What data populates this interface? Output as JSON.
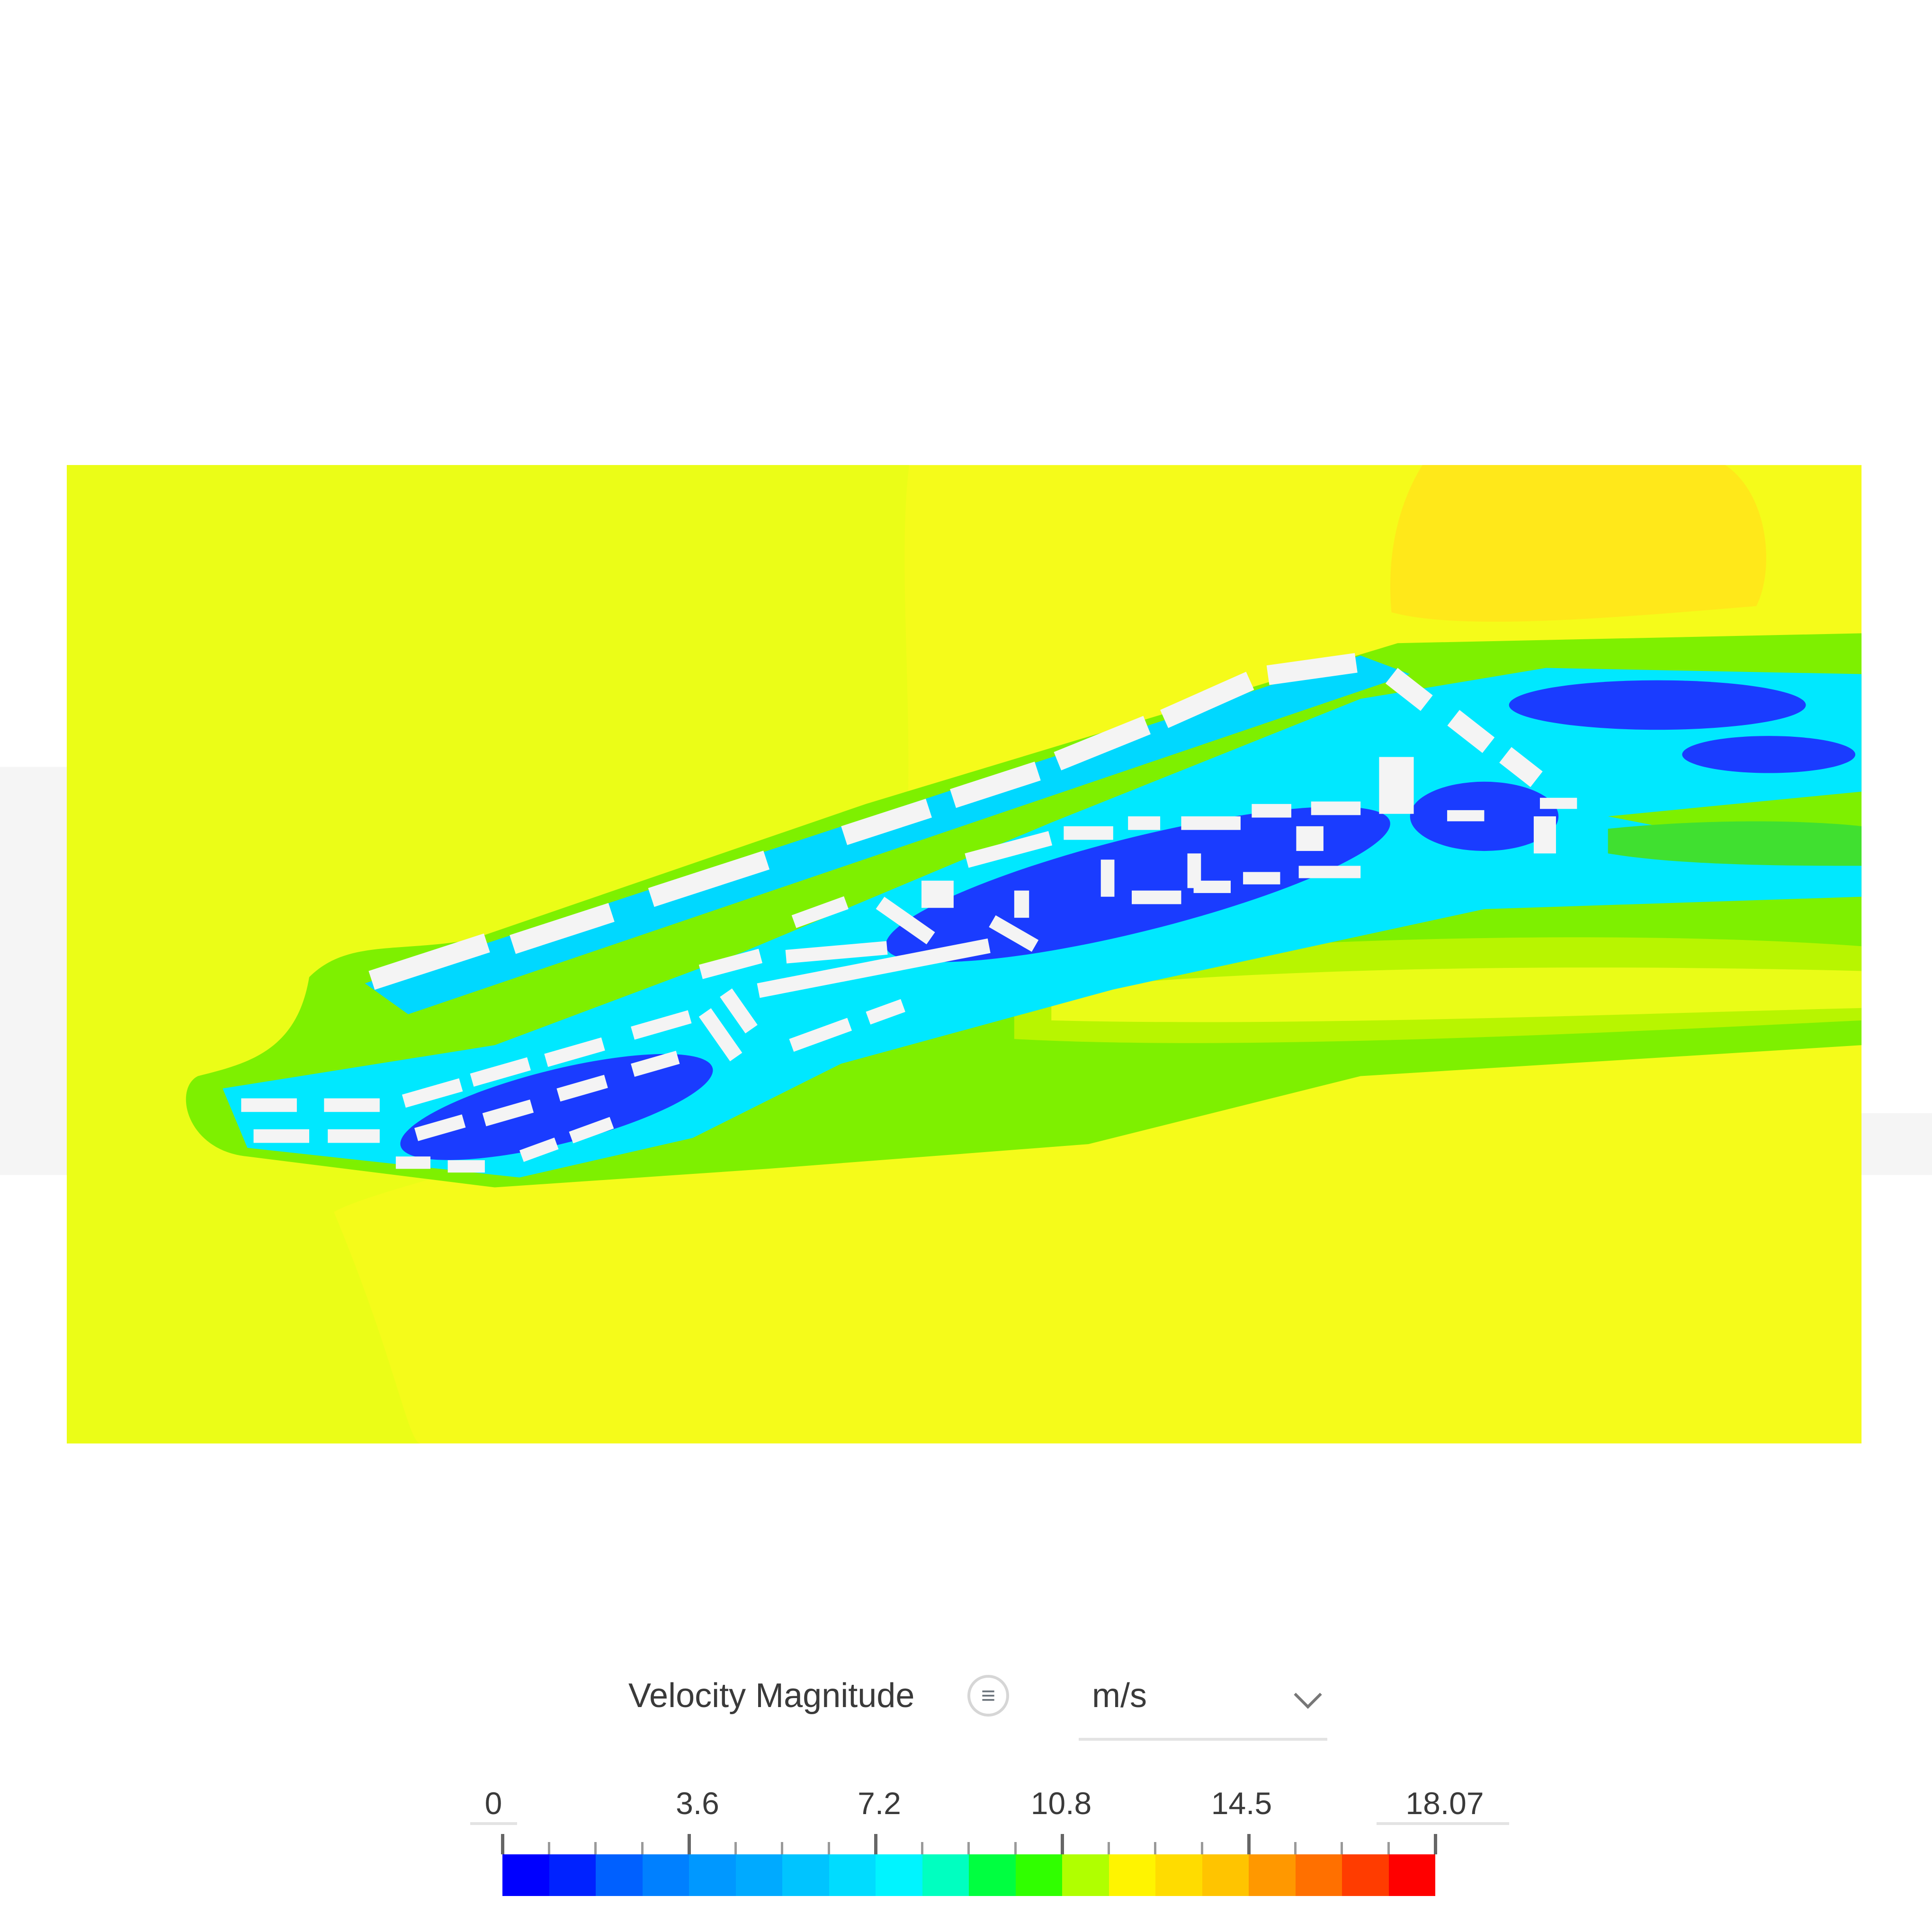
{
  "viewer": {
    "field": "Velocity Magnitude",
    "colors": {
      "background_flow": "#f5fb1a",
      "high_flow": "#ffe81a",
      "wake_green": "#7ef000",
      "wake_cyan": "#00e8ff",
      "low_blue": "#1a3cff",
      "buildings": "#f4f4f4"
    }
  },
  "legend": {
    "title": "Velocity Magnitude",
    "menu_icon": "list-menu-icon",
    "unit": "m/s",
    "unit_dropdown_icon": "chevron-down-icon",
    "min": 0,
    "max": 18.07,
    "tick_labels": [
      "0",
      "3.6",
      "7.2",
      "10.8",
      "14.5",
      "18.07"
    ],
    "color_bands": [
      "#0000ff",
      "#0022ff",
      "#0060ff",
      "#0080ff",
      "#0098ff",
      "#00aaff",
      "#00c4ff",
      "#00dcff",
      "#00f4ff",
      "#00ffc0",
      "#00ff40",
      "#30ff00",
      "#b0ff00",
      "#fff400",
      "#ffdc00",
      "#ffc400",
      "#ff9800",
      "#ff7000",
      "#ff3c00",
      "#ff0000"
    ]
  }
}
